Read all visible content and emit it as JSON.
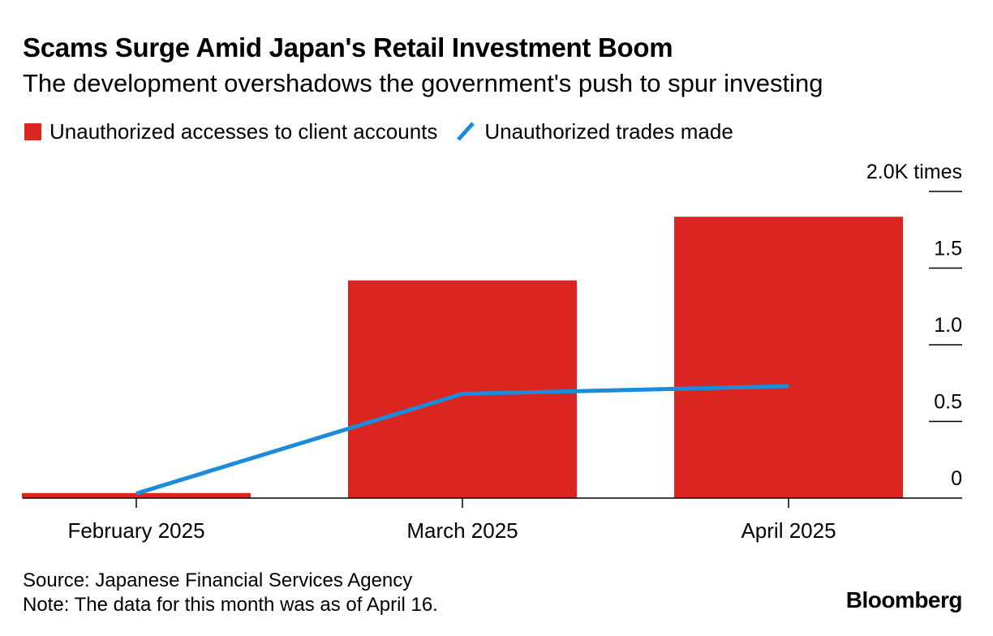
{
  "title": "Scams Surge Amid Japan's Retail Investment Boom",
  "subtitle": "The development overshadows the government's push to spur investing",
  "colors": {
    "bar": "#DA2520",
    "line": "#1A8CDB"
  },
  "legend": {
    "bar_label": "Unauthorized accesses to client accounts",
    "line_label": "Unauthorized trades made"
  },
  "footer": {
    "source": "Source: Japanese Financial Services Agency",
    "note": "Note: The data for this month was as of April 16.",
    "brand": "Bloomberg"
  },
  "chart_data": {
    "type": "bar",
    "categories": [
      "February 2025",
      "March 2025",
      "April 2025"
    ],
    "series": [
      {
        "name": "Unauthorized accesses to client accounts",
        "type": "bar",
        "values": [
          33,
          1420,
          1835
        ]
      },
      {
        "name": "Unauthorized trades made",
        "type": "line",
        "values": [
          30,
          680,
          730
        ]
      }
    ],
    "yticks": [
      0,
      0.5,
      1.0,
      1.5,
      2.0
    ],
    "ytick_labels": [
      "0",
      "0.5",
      "1.0",
      "1.5",
      "2.0K times"
    ],
    "ylim": [
      0,
      2000
    ],
    "yaxis_position": "right",
    "grid": false
  }
}
